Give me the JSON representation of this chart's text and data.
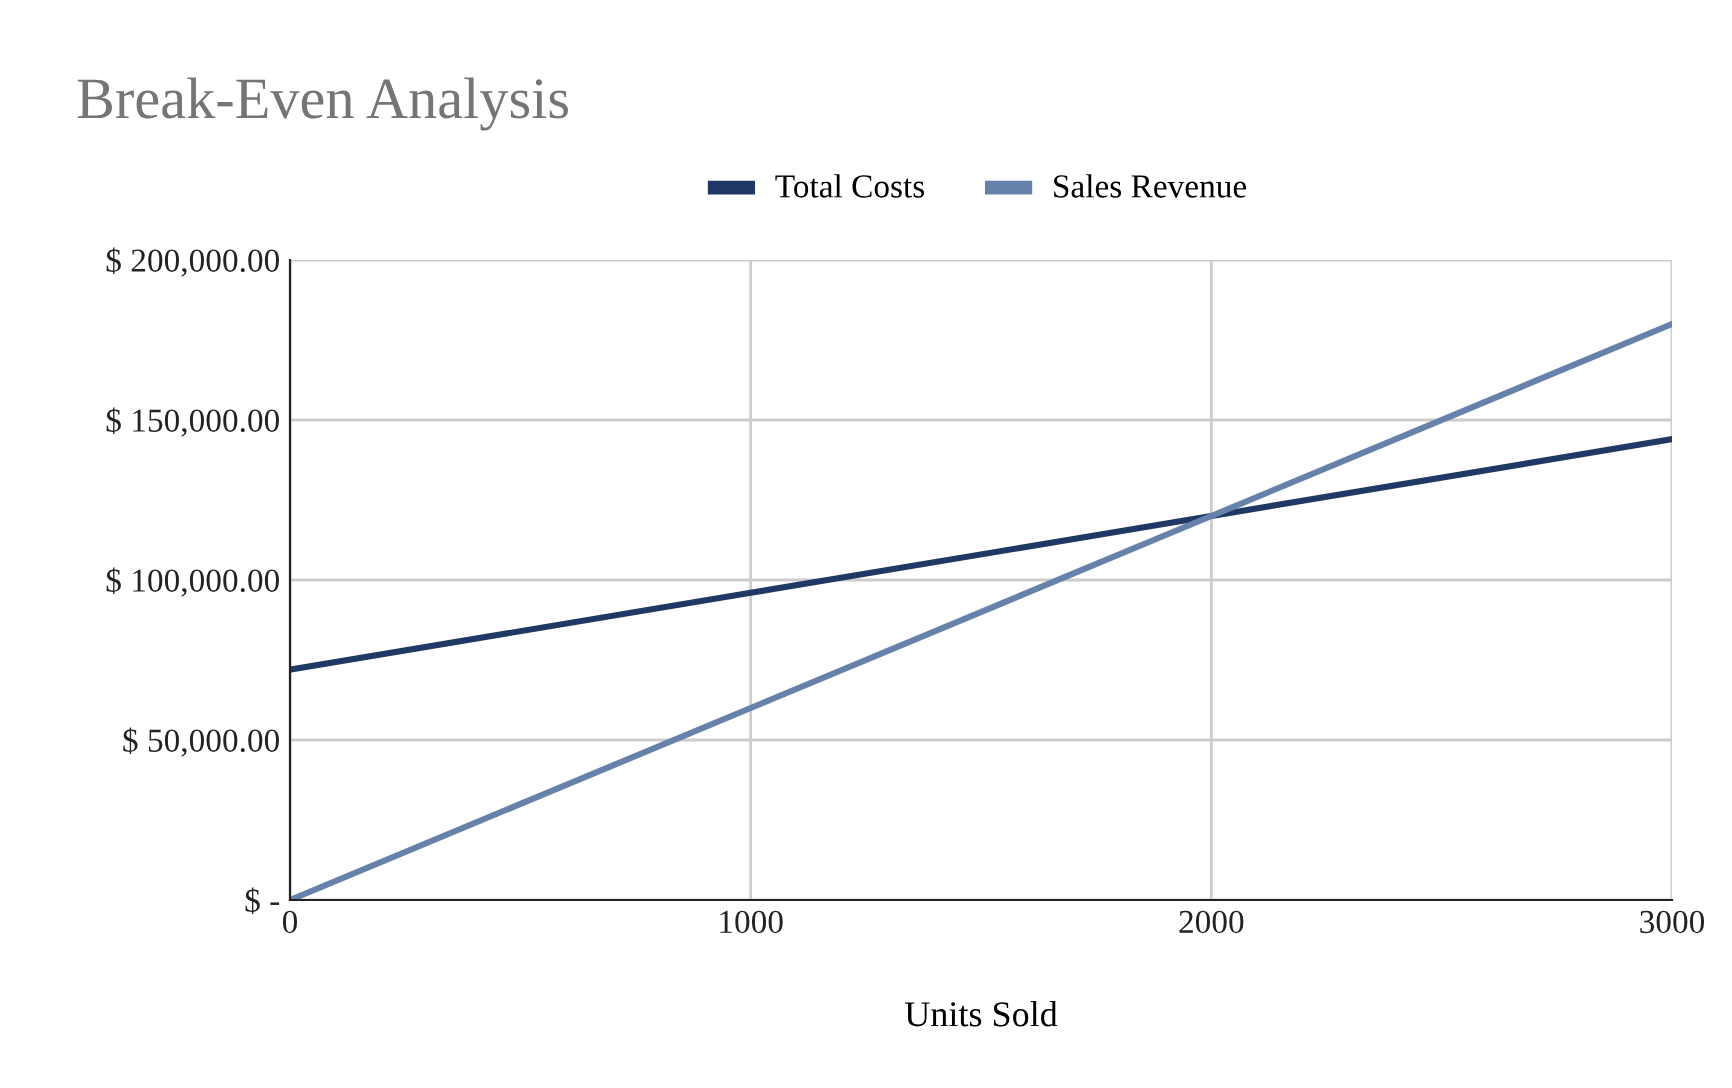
{
  "chart_data": {
    "type": "line",
    "title": "Break-Even Analysis",
    "xlabel": "Units Sold",
    "x": [
      0,
      1000,
      2000,
      3000
    ],
    "series": [
      {
        "name": "Total Costs",
        "color": "#1f3864",
        "values": [
          72000,
          96000,
          120000,
          144000
        ]
      },
      {
        "name": "Sales Revenue",
        "color": "#6682aa",
        "values": [
          0,
          60000,
          120000,
          180000
        ]
      }
    ],
    "xlim": [
      0,
      3000
    ],
    "xticks": [
      0,
      1000,
      2000,
      3000
    ],
    "ylim": [
      0,
      200000
    ],
    "yticks": [
      {
        "value": 0,
        "label": "$ -"
      },
      {
        "value": 50000,
        "label": "$ 50,000.00"
      },
      {
        "value": 100000,
        "label": "$ 100,000.00"
      },
      {
        "value": 150000,
        "label": "$ 150,000.00"
      },
      {
        "value": 200000,
        "label": "$ 200,000.00"
      }
    ],
    "grid": true,
    "legend": "top",
    "marker": "none",
    "line_style": "solid"
  }
}
